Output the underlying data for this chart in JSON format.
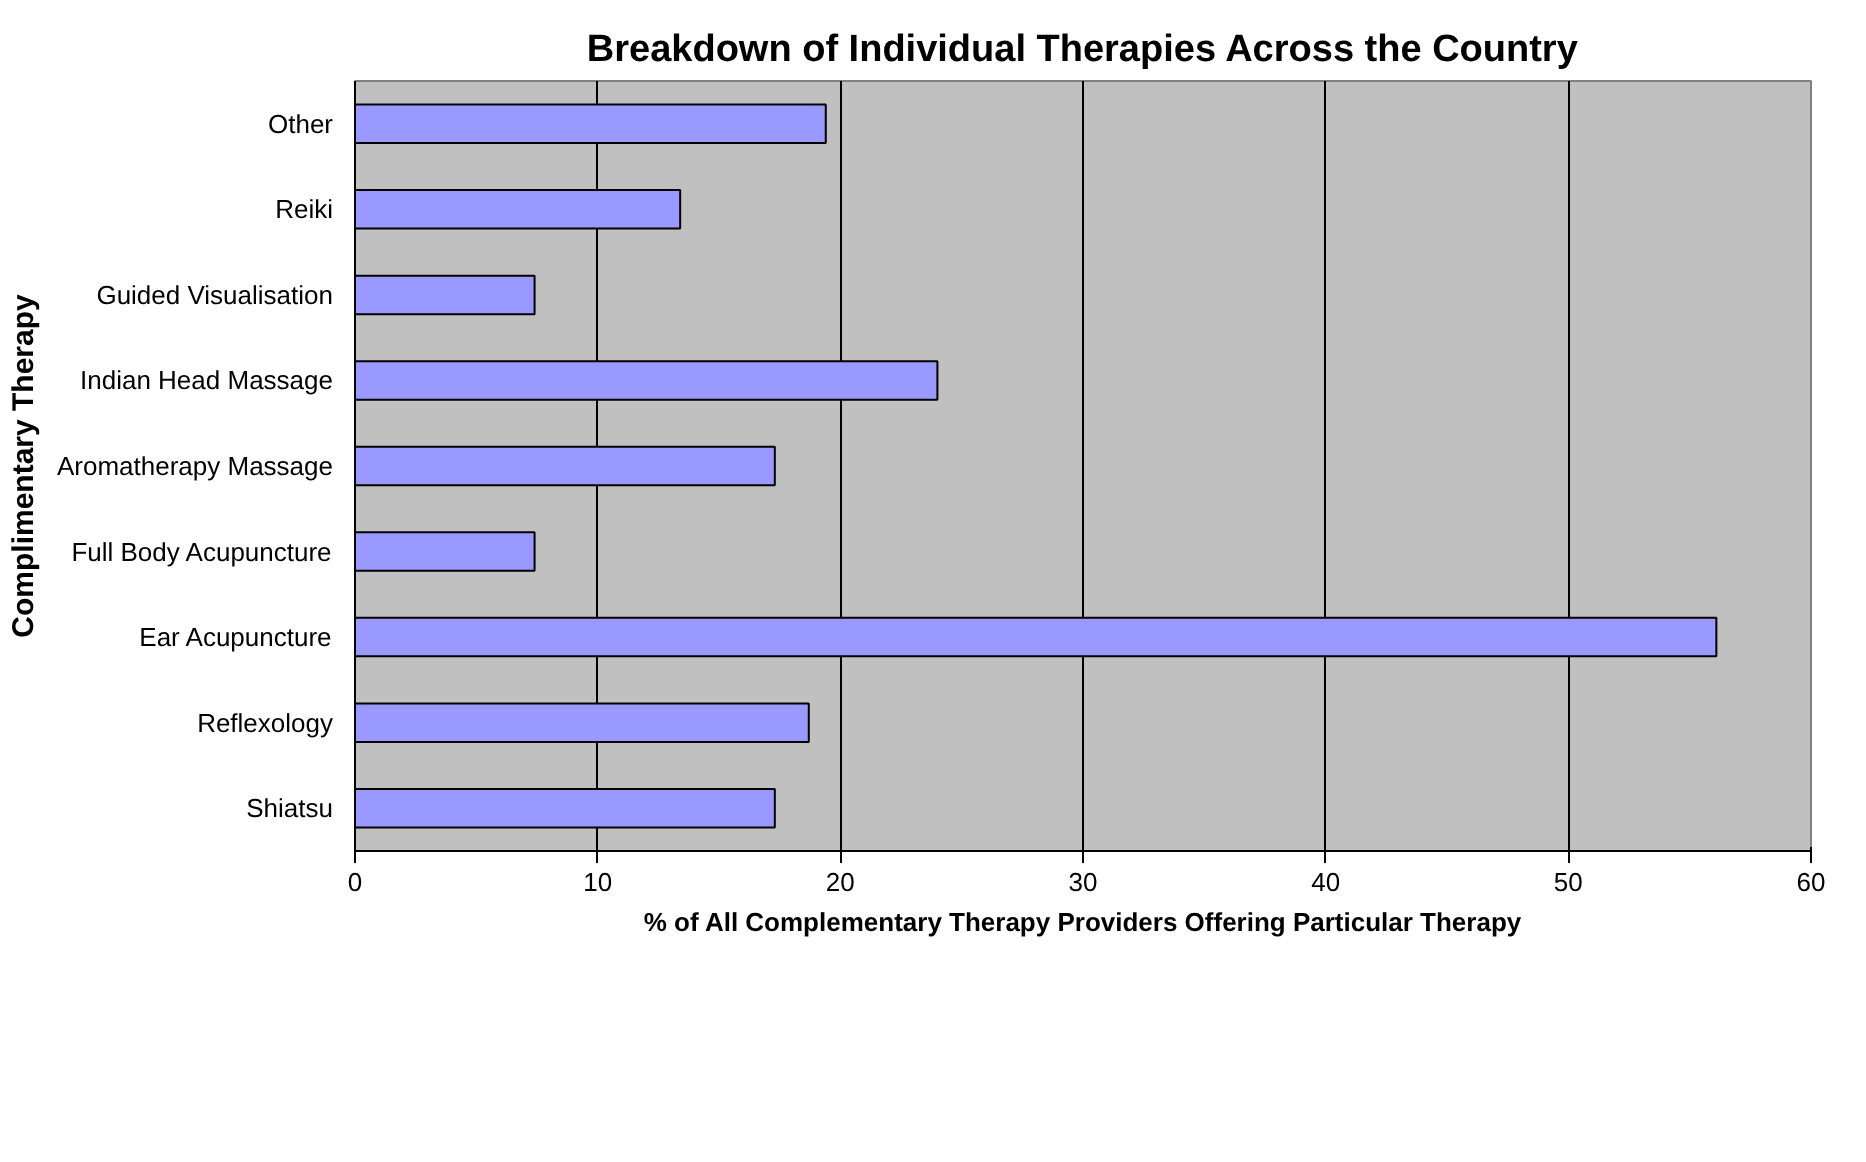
{
  "chart_data": {
    "type": "bar",
    "orientation": "horizontal",
    "title": "Breakdown of Individual Therapies Across the Country",
    "xlabel": "% of All Complementary Therapy Providers Offering Particular Therapy",
    "ylabel": "Complimentary Therapy",
    "categories": [
      "Other",
      "Reiki",
      "Guided Visualisation",
      "Indian Head Massage",
      "Aromatherapy Massage",
      "Full Body Acupuncture",
      "Ear Acupuncture",
      "Reflexology",
      "Shiatsu"
    ],
    "values": [
      19.4,
      13.4,
      7.4,
      24.0,
      17.3,
      7.4,
      56.1,
      18.7,
      17.3
    ],
    "color": "#9999ff",
    "xlim": [
      0,
      60
    ],
    "xticks": [
      0,
      10,
      20,
      30,
      40,
      50,
      60
    ],
    "grid": "x"
  }
}
